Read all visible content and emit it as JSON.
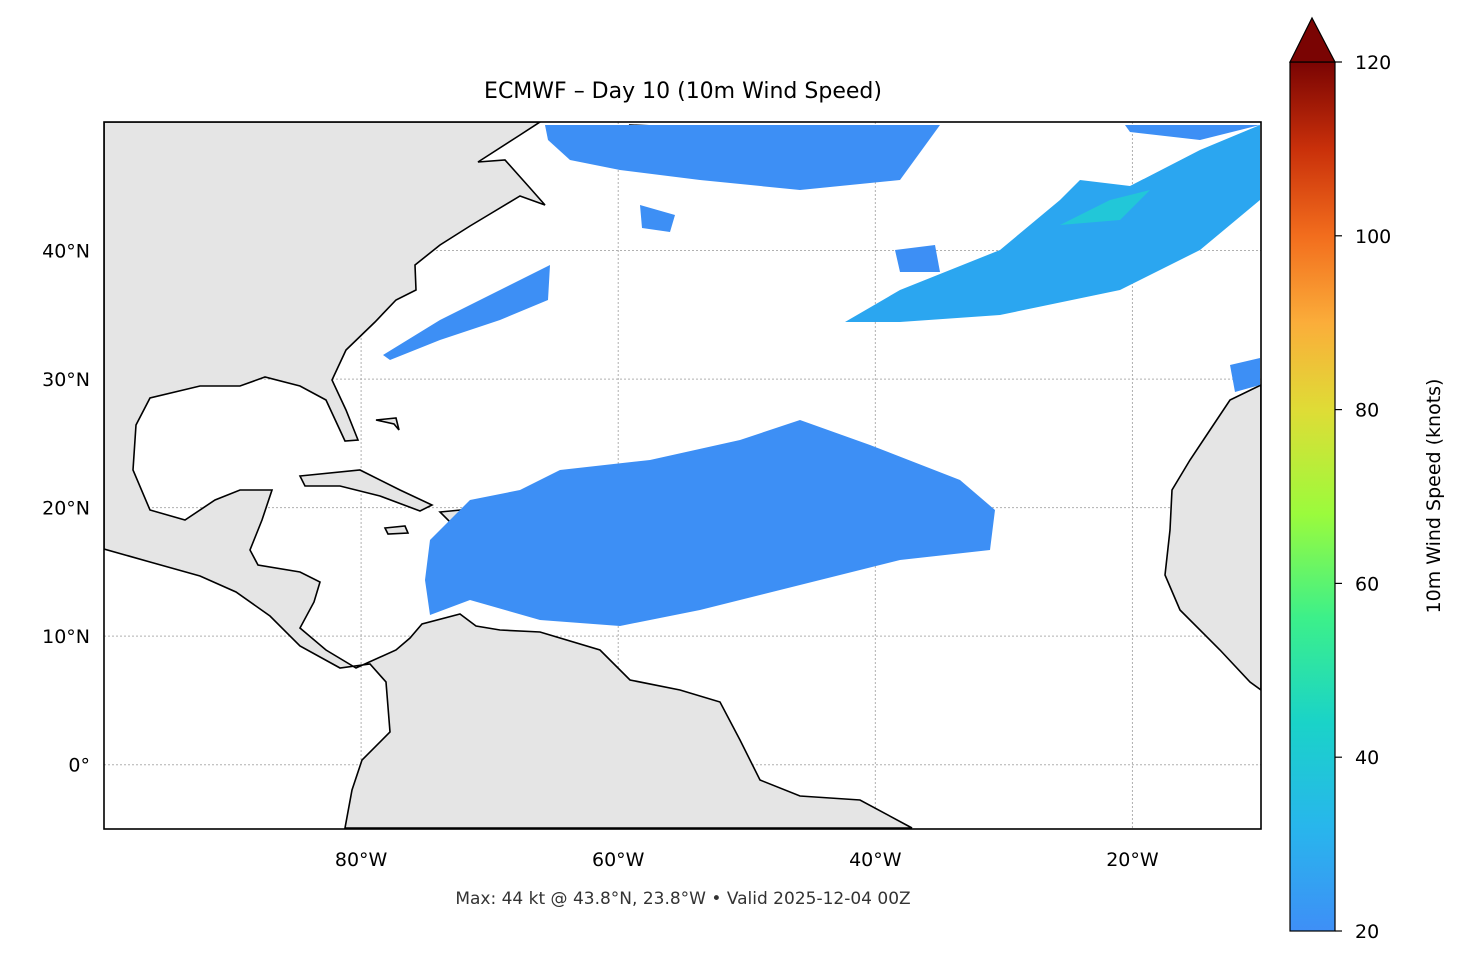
{
  "chart_data": {
    "type": "map",
    "title": "ECMWF – Day 10 (10m Wind Speed)",
    "xlim": [
      -100,
      -10
    ],
    "ylim": [
      -5,
      50
    ],
    "xticks": [
      {
        "value": -80,
        "label": "80°W"
      },
      {
        "value": -60,
        "label": "60°W"
      },
      {
        "value": -40,
        "label": "40°W"
      },
      {
        "value": -20,
        "label": "20°W"
      }
    ],
    "yticks": [
      {
        "value": 0,
        "label": "0°"
      },
      {
        "value": 10,
        "label": "10°N"
      },
      {
        "value": 20,
        "label": "20°N"
      },
      {
        "value": 30,
        "label": "30°N"
      },
      {
        "value": 40,
        "label": "40°N"
      }
    ],
    "grid": true,
    "colorbar": {
      "label": "10m Wind Speed (knots)",
      "lim": [
        20,
        120
      ],
      "ticks": [
        20,
        40,
        60,
        80,
        100,
        120
      ]
    },
    "footnote": "Max: 44 kt @ 43.8°N, 23.8°W • Valid 2025-12-04 00Z"
  }
}
